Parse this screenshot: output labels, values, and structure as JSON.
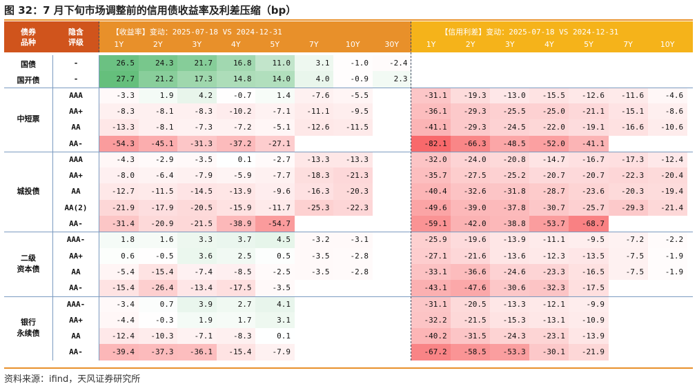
{
  "title": "图 32：7 月下旬市场调整前的信用债收益率及利差压缩（bp）",
  "footer": "资料来源：ifind，天风证券研究所",
  "chart_data": {
    "type": "table",
    "left_headers": {
      "type_label": "债券\n品种",
      "rating_label": "隐含\n评级"
    },
    "yield_header": "【收益率】变动：2025-07-18 VS 2024-12-31",
    "spread_header": "【信用利差】变动：2025-07-18 VS 2024-12-31",
    "yield_tenors": [
      "1Y",
      "2Y",
      "3Y",
      "4Y",
      "5Y",
      "7Y",
      "10Y",
      "30Y"
    ],
    "spread_tenors": [
      "1Y",
      "2Y",
      "3Y",
      "4Y",
      "5Y",
      "7Y",
      "10Y"
    ],
    "header_colors": {
      "left": "#d0541c",
      "yield": "#e8902a",
      "spread": "#f5b31a"
    },
    "groups": [
      {
        "name": "",
        "rows": [
          {
            "type": "国债",
            "rating": "-",
            "yield": [
              26.5,
              24.3,
              21.7,
              16.8,
              11.0,
              3.1,
              -1.0,
              -2.4
            ],
            "spread": [
              null,
              null,
              null,
              null,
              null,
              null,
              null
            ]
          },
          {
            "type": "国开债",
            "rating": "-",
            "yield": [
              27.7,
              21.2,
              17.3,
              14.8,
              14.0,
              4.0,
              -0.9,
              2.3
            ],
            "spread": [
              null,
              null,
              null,
              null,
              null,
              null,
              null
            ]
          }
        ]
      },
      {
        "name": "中短票",
        "rows": [
          {
            "rating": "AAA",
            "yield": [
              -3.3,
              1.9,
              4.2,
              -0.7,
              1.4,
              -7.6,
              -5.5,
              null
            ],
            "spread": [
              -31.1,
              -19.3,
              -13.0,
              -15.5,
              -12.6,
              -11.6,
              -4.6
            ]
          },
          {
            "rating": "AA+",
            "yield": [
              -8.3,
              -8.1,
              -8.3,
              -10.2,
              -7.1,
              -11.1,
              -9.5,
              null
            ],
            "spread": [
              -36.1,
              -29.3,
              -25.5,
              -25.0,
              -21.1,
              -15.1,
              -8.6
            ]
          },
          {
            "rating": "AA",
            "yield": [
              -13.3,
              -8.1,
              -7.3,
              -7.2,
              -5.1,
              -12.6,
              -11.5,
              null
            ],
            "spread": [
              -41.1,
              -29.3,
              -24.5,
              -22.0,
              -19.1,
              -16.6,
              -10.6
            ]
          },
          {
            "rating": "AA-",
            "yield": [
              -54.3,
              -45.1,
              -31.3,
              -37.2,
              -27.1,
              null,
              null,
              null
            ],
            "spread": [
              -82.1,
              -66.3,
              -48.5,
              -52.0,
              -41.1,
              null,
              null
            ]
          }
        ]
      },
      {
        "name": "城投债",
        "rows": [
          {
            "rating": "AAA",
            "yield": [
              -4.3,
              -2.9,
              -3.5,
              0.1,
              -2.7,
              -13.3,
              -13.3,
              null
            ],
            "spread": [
              -32.0,
              -24.0,
              -20.8,
              -14.7,
              -16.7,
              -17.3,
              -12.4
            ]
          },
          {
            "rating": "AA+",
            "yield": [
              -8.0,
              -6.4,
              -7.9,
              -5.9,
              -7.7,
              -18.3,
              -21.3,
              null
            ],
            "spread": [
              -35.7,
              -27.5,
              -25.2,
              -20.7,
              -20.7,
              -22.3,
              -20.4
            ]
          },
          {
            "rating": "AA",
            "yield": [
              -12.7,
              -11.5,
              -14.5,
              -13.9,
              -9.6,
              -16.3,
              -20.3,
              null
            ],
            "spread": [
              -40.4,
              -32.6,
              -31.8,
              -28.7,
              -23.6,
              -20.3,
              -19.4
            ]
          },
          {
            "rating": "AA(2)",
            "yield": [
              -21.9,
              -17.9,
              -20.5,
              -15.9,
              -11.7,
              -25.3,
              -22.3,
              null
            ],
            "spread": [
              -49.6,
              -39.0,
              -37.8,
              -30.7,
              -25.7,
              -29.3,
              -21.4
            ]
          },
          {
            "rating": "AA-",
            "yield": [
              -31.4,
              -20.9,
              -21.5,
              -38.9,
              -54.7,
              null,
              null,
              null
            ],
            "spread": [
              -59.1,
              -42.0,
              -38.8,
              -53.7,
              -68.7,
              null,
              null
            ]
          }
        ]
      },
      {
        "name": "二级\n资本债",
        "rows": [
          {
            "rating": "AAA-",
            "yield": [
              1.8,
              1.6,
              3.3,
              3.7,
              4.5,
              -3.2,
              -3.1,
              null
            ],
            "spread": [
              -25.9,
              -19.6,
              -13.9,
              -11.1,
              -9.5,
              -7.2,
              -2.2
            ]
          },
          {
            "rating": "AA+",
            "yield": [
              0.6,
              -0.5,
              3.6,
              2.5,
              0.5,
              -3.5,
              -2.8,
              null
            ],
            "spread": [
              -27.1,
              -21.6,
              -13.6,
              -12.3,
              -13.5,
              -7.5,
              -1.9
            ]
          },
          {
            "rating": "AA",
            "yield": [
              -5.4,
              -15.4,
              -7.4,
              -8.5,
              -2.5,
              -3.5,
              -2.8,
              null
            ],
            "spread": [
              -33.1,
              -36.6,
              -24.6,
              -23.3,
              -16.5,
              -7.5,
              -1.9
            ]
          },
          {
            "rating": "AA-",
            "yield": [
              -15.4,
              -26.4,
              -13.4,
              -17.5,
              -3.5,
              null,
              null,
              null
            ],
            "spread": [
              -43.1,
              -47.6,
              -30.6,
              -32.3,
              -17.5,
              null,
              null
            ]
          }
        ]
      },
      {
        "name": "银行\n永续债",
        "rows": [
          {
            "rating": "AAA-",
            "yield": [
              -3.4,
              0.7,
              3.9,
              2.7,
              4.1,
              null,
              null,
              null
            ],
            "spread": [
              -31.1,
              -20.5,
              -13.3,
              -12.1,
              -9.9,
              null,
              null
            ]
          },
          {
            "rating": "AA+",
            "yield": [
              -4.4,
              -0.3,
              1.9,
              1.7,
              3.1,
              null,
              null,
              null
            ],
            "spread": [
              -32.2,
              -21.5,
              -15.3,
              -13.1,
              -10.9,
              null,
              null
            ]
          },
          {
            "rating": "AA",
            "yield": [
              -12.4,
              -10.3,
              -7.1,
              -8.3,
              0.1,
              null,
              null,
              null
            ],
            "spread": [
              -40.2,
              -31.5,
              -24.3,
              -23.1,
              -13.9,
              null,
              null
            ]
          },
          {
            "rating": "AA-",
            "yield": [
              -39.4,
              -37.3,
              -36.1,
              -15.4,
              -7.9,
              null,
              null,
              null
            ],
            "spread": [
              -67.2,
              -58.5,
              -53.3,
              -30.1,
              -21.9,
              null,
              null
            ]
          }
        ]
      }
    ]
  }
}
